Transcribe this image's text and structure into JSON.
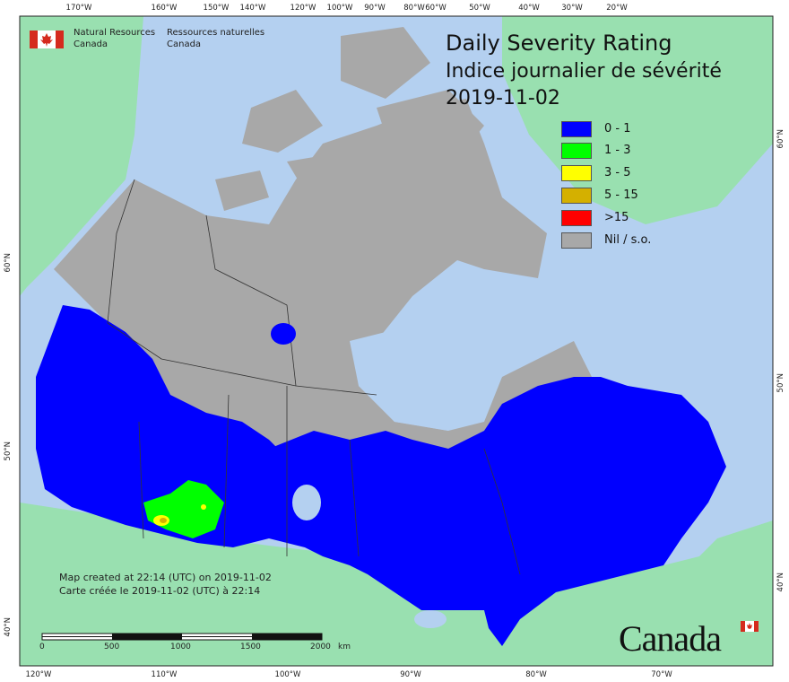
{
  "title": {
    "en": "Daily Severity Rating",
    "fr": "Indice journalier de sévérité",
    "date": "2019-11-02"
  },
  "agency": {
    "en_line1": "Natural Resources",
    "en_line2": "Canada",
    "fr_line1": "Ressources naturelles",
    "fr_line2": "Canada"
  },
  "legend": [
    {
      "label": "0 - 1",
      "color": "#0000ff"
    },
    {
      "label": "1 - 3",
      "color": "#00ff00"
    },
    {
      "label": "3 - 5",
      "color": "#ffff00"
    },
    {
      "label": "5 - 15",
      "color": "#d4b000"
    },
    {
      "label": ">15",
      "color": "#ff0000"
    },
    {
      "label": "Nil / s.o.",
      "color": "#a8a8a8"
    }
  ],
  "graticule": {
    "top": [
      "170°W",
      "160°W",
      "150°W",
      "140°W",
      "120°W",
      "100°W",
      "90°W",
      "80°W",
      "60°W",
      "50°W",
      "40°W",
      "30°W",
      "20°W"
    ],
    "bottom": [
      "120°W",
      "110°W",
      "100°W",
      "90°W",
      "80°W",
      "70°W"
    ],
    "left": [
      "60°N",
      "50°N",
      "40°N"
    ],
    "right": [
      "60°N",
      "50°N",
      "40°N"
    ]
  },
  "map_note": {
    "en": "Map created at 22:14 (UTC) on 2019-11-02",
    "fr": "Carte créée le 2019-11-02 (UTC) à 22:14"
  },
  "scale_bar": {
    "ticks": [
      "0",
      "500",
      "1000",
      "1500",
      "2000"
    ],
    "unit": "km"
  },
  "wordmark": "Canada",
  "colors": {
    "ocean": "#b4d0f0",
    "foreign_land": "#99e0b0",
    "nil_land": "#a8a8a8",
    "rating_low": "#0000ff"
  }
}
